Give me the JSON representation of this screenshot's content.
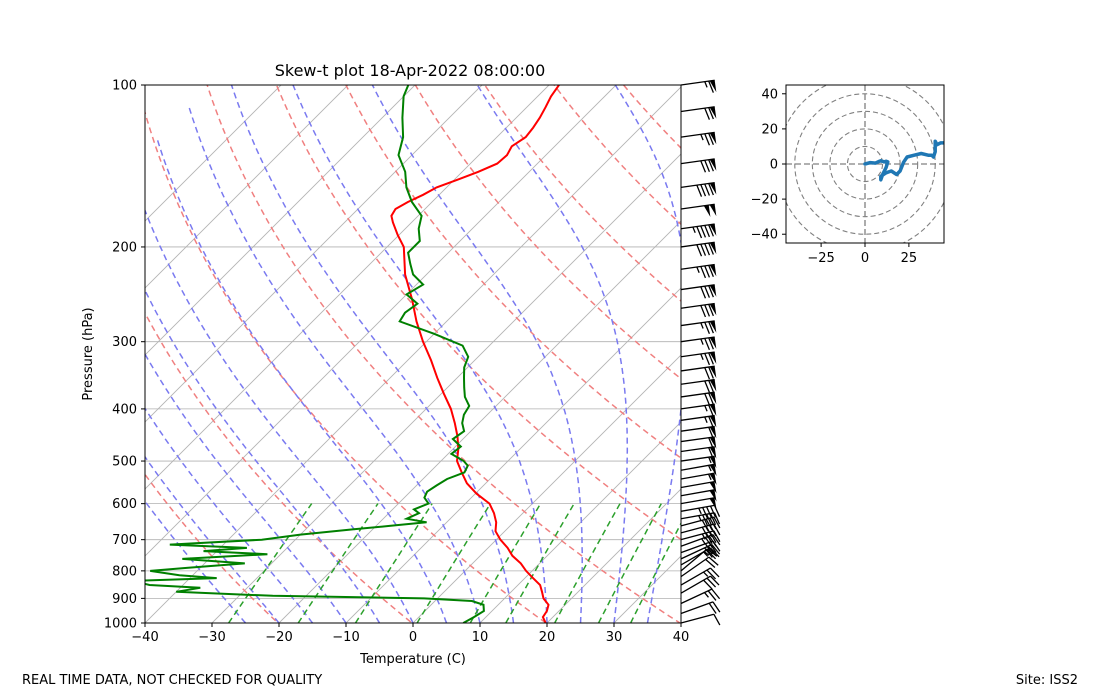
{
  "chart_data": [
    {
      "type": "skew-t",
      "title": "Skew-t plot 18-Apr-2022 08:00:00",
      "xlabel": "Temperature (C)",
      "ylabel": "Pressure (hPa)",
      "xlim": [
        -40,
        40
      ],
      "ylim_pressure": [
        1000,
        100
      ],
      "x_ticks": [
        -40,
        -30,
        -20,
        -10,
        0,
        10,
        20,
        30,
        40
      ],
      "x_tick_labels": [
        "−40",
        "−30",
        "−20",
        "−10",
        "0",
        "10",
        "20",
        "30",
        "40"
      ],
      "y_ticks": [
        1000,
        900,
        800,
        700,
        600,
        500,
        400,
        300,
        200,
        100
      ],
      "y_tick_labels": [
        "1000",
        "900",
        "800",
        "700",
        "600",
        "500",
        "400",
        "300",
        "200",
        "100"
      ],
      "grid": true,
      "isotherm_temps_c": [
        -100,
        -90,
        -80,
        -70,
        -60,
        -50,
        -40,
        -30,
        -20,
        -10,
        0,
        10,
        20,
        30,
        40
      ],
      "dry_adiabat_thetas_k": [
        233,
        253,
        273,
        293,
        313,
        333,
        353,
        373,
        393,
        413,
        433
      ],
      "moist_adiabat_start_temps_c": [
        -25,
        -20,
        -15,
        -10,
        -5,
        0,
        5,
        10,
        15,
        20,
        25,
        30,
        35
      ],
      "mixing_ratio_lines_gkg": [
        0.4,
        1,
        2,
        4,
        7,
        10,
        16,
        24,
        32
      ],
      "mixing_ratio_top_hpa": 600,
      "colors": {
        "temperature": "#ff0000",
        "dewpoint": "#008000",
        "isotherm": "#b4b4b4",
        "dry_adiabat": "#f08080",
        "moist_adiabat": "#7a7af0",
        "mixing_ratio": "#2ca02c",
        "wind_barb": "#000000"
      },
      "temperature_series": {
        "name": "Temperature",
        "pressure_hpa": [
          1000,
          975,
          950,
          925,
          900,
          875,
          850,
          825,
          800,
          775,
          750,
          725,
          700,
          675,
          650,
          625,
          600,
          575,
          550,
          525,
          500,
          475,
          450,
          425,
          400,
          375,
          350,
          325,
          300,
          275,
          250,
          225,
          200,
          190,
          180,
          175,
          170,
          165,
          160,
          155,
          150,
          145,
          140,
          135,
          130,
          125,
          120,
          115,
          110,
          105,
          100
        ],
        "temp_c": [
          19.8,
          18.5,
          18.2,
          17.5,
          15.8,
          14.6,
          13.3,
          11.2,
          9.1,
          7.2,
          4.8,
          2.9,
          0.6,
          -1.4,
          -2.6,
          -4.3,
          -6.4,
          -9.8,
          -12.8,
          -15.2,
          -17.6,
          -19.2,
          -21.2,
          -23.6,
          -26.3,
          -29.6,
          -33.0,
          -36.5,
          -40.5,
          -44.5,
          -48.5,
          -53.2,
          -57.5,
          -60.2,
          -62.8,
          -64.0,
          -64.4,
          -63.6,
          -62.4,
          -61.5,
          -59.5,
          -57.6,
          -56.0,
          -55.8,
          -56.4,
          -55.7,
          -56.0,
          -56.5,
          -57.2,
          -58.0,
          -58.5
        ]
      },
      "dewpoint_series": {
        "name": "Dewpoint",
        "pressure_hpa": [
          1000,
          975,
          950,
          925,
          910,
          900,
          890,
          875,
          860,
          850,
          835,
          825,
          815,
          800,
          790,
          775,
          760,
          745,
          735,
          725,
          715,
          700,
          685,
          670,
          660,
          650,
          640,
          625,
          615,
          600,
          585,
          570,
          555,
          540,
          525,
          510,
          500,
          485,
          470,
          455,
          440,
          425,
          410,
          395,
          380,
          365,
          350,
          335,
          320,
          305,
          290,
          275,
          265,
          255,
          245,
          235,
          225,
          215,
          205,
          195,
          185,
          175,
          165,
          155,
          145,
          135,
          125,
          115,
          105,
          100
        ],
        "dewpoint_c": [
          7.5,
          8.2,
          8.8,
          7.8,
          5.5,
          -2.0,
          -25.0,
          -40.0,
          -37.0,
          -45.0,
          -48.0,
          -36.0,
          -42.0,
          -47.0,
          -42.0,
          -34.0,
          -44.0,
          -32.0,
          -42.0,
          -36.0,
          -48.0,
          -35.0,
          -30.0,
          -23.0,
          -18.0,
          -13.0,
          -16.5,
          -15.5,
          -16.8,
          -15.5,
          -17.0,
          -17.5,
          -17.0,
          -16.4,
          -14.8,
          -15.3,
          -16.6,
          -19.5,
          -19.2,
          -21.5,
          -21.0,
          -22.5,
          -23.5,
          -24.0,
          -26.0,
          -27.5,
          -29.0,
          -30.5,
          -31.5,
          -34.0,
          -40.0,
          -47.0,
          -47.5,
          -47.0,
          -50.0,
          -49.0,
          -52.0,
          -54.0,
          -56.0,
          -56.0,
          -58.0,
          -59.5,
          -63.0,
          -66.0,
          -68.5,
          -72.0,
          -74.0,
          -77.0,
          -80.0,
          -81.0
        ]
      },
      "wind_barbs": {
        "pressure_hpa": [
          1000,
          960,
          920,
          880,
          850,
          820,
          800,
          780,
          760,
          740,
          720,
          700,
          680,
          660,
          640,
          620,
          600,
          580,
          560,
          540,
          520,
          500,
          480,
          460,
          440,
          420,
          400,
          380,
          360,
          340,
          320,
          300,
          280,
          260,
          240,
          220,
          200,
          185,
          170,
          155,
          140,
          125,
          112,
          100
        ],
        "direction_deg": [
          255,
          250,
          245,
          240,
          240,
          235,
          230,
          240,
          245,
          250,
          250,
          255,
          255,
          255,
          260,
          260,
          260,
          260,
          260,
          260,
          260,
          262,
          262,
          262,
          262,
          262,
          262,
          262,
          262,
          262,
          262,
          262,
          262,
          262,
          262,
          262,
          262,
          262,
          262,
          262,
          262,
          262,
          262,
          262
        ],
        "speed_kt": [
          10,
          20,
          25,
          30,
          25,
          20,
          15,
          25,
          30,
          30,
          35,
          35,
          40,
          40,
          45,
          45,
          50,
          50,
          50,
          55,
          55,
          55,
          60,
          60,
          60,
          65,
          65,
          70,
          70,
          70,
          75,
          75,
          75,
          80,
          80,
          85,
          90,
          95,
          100,
          90,
          80,
          75,
          70,
          65
        ]
      }
    },
    {
      "type": "hodograph",
      "xlim": [
        -45,
        45
      ],
      "ylim": [
        -45,
        45
      ],
      "x_ticks": [
        -25,
        0,
        25
      ],
      "x_tick_labels": [
        "−25",
        "0",
        "25"
      ],
      "y_ticks": [
        40,
        20,
        0,
        -20,
        -40
      ],
      "y_tick_labels": [
        "40",
        "20",
        "0",
        "−20",
        "−40"
      ],
      "ring_radii": [
        10,
        20,
        30,
        40,
        50
      ],
      "line_color": "#1f77b4",
      "u": [
        0,
        3,
        6,
        8,
        9,
        11,
        12,
        13,
        12,
        10,
        9,
        9,
        12,
        15,
        18,
        20,
        22,
        24,
        28,
        32,
        36,
        38,
        39,
        40,
        40,
        41,
        43,
        45
      ],
      "v": [
        0,
        0.8,
        0.5,
        1.5,
        1.8,
        1.2,
        1.6,
        1.2,
        -2,
        -6,
        -9,
        -7,
        -5,
        -4,
        -6,
        -4,
        1,
        4,
        5,
        6,
        5,
        5,
        4,
        7,
        13,
        11,
        12,
        12
      ]
    }
  ],
  "footer": {
    "left": "REAL TIME DATA, NOT CHECKED FOR QUALITY",
    "right": "Site: ISS2"
  }
}
